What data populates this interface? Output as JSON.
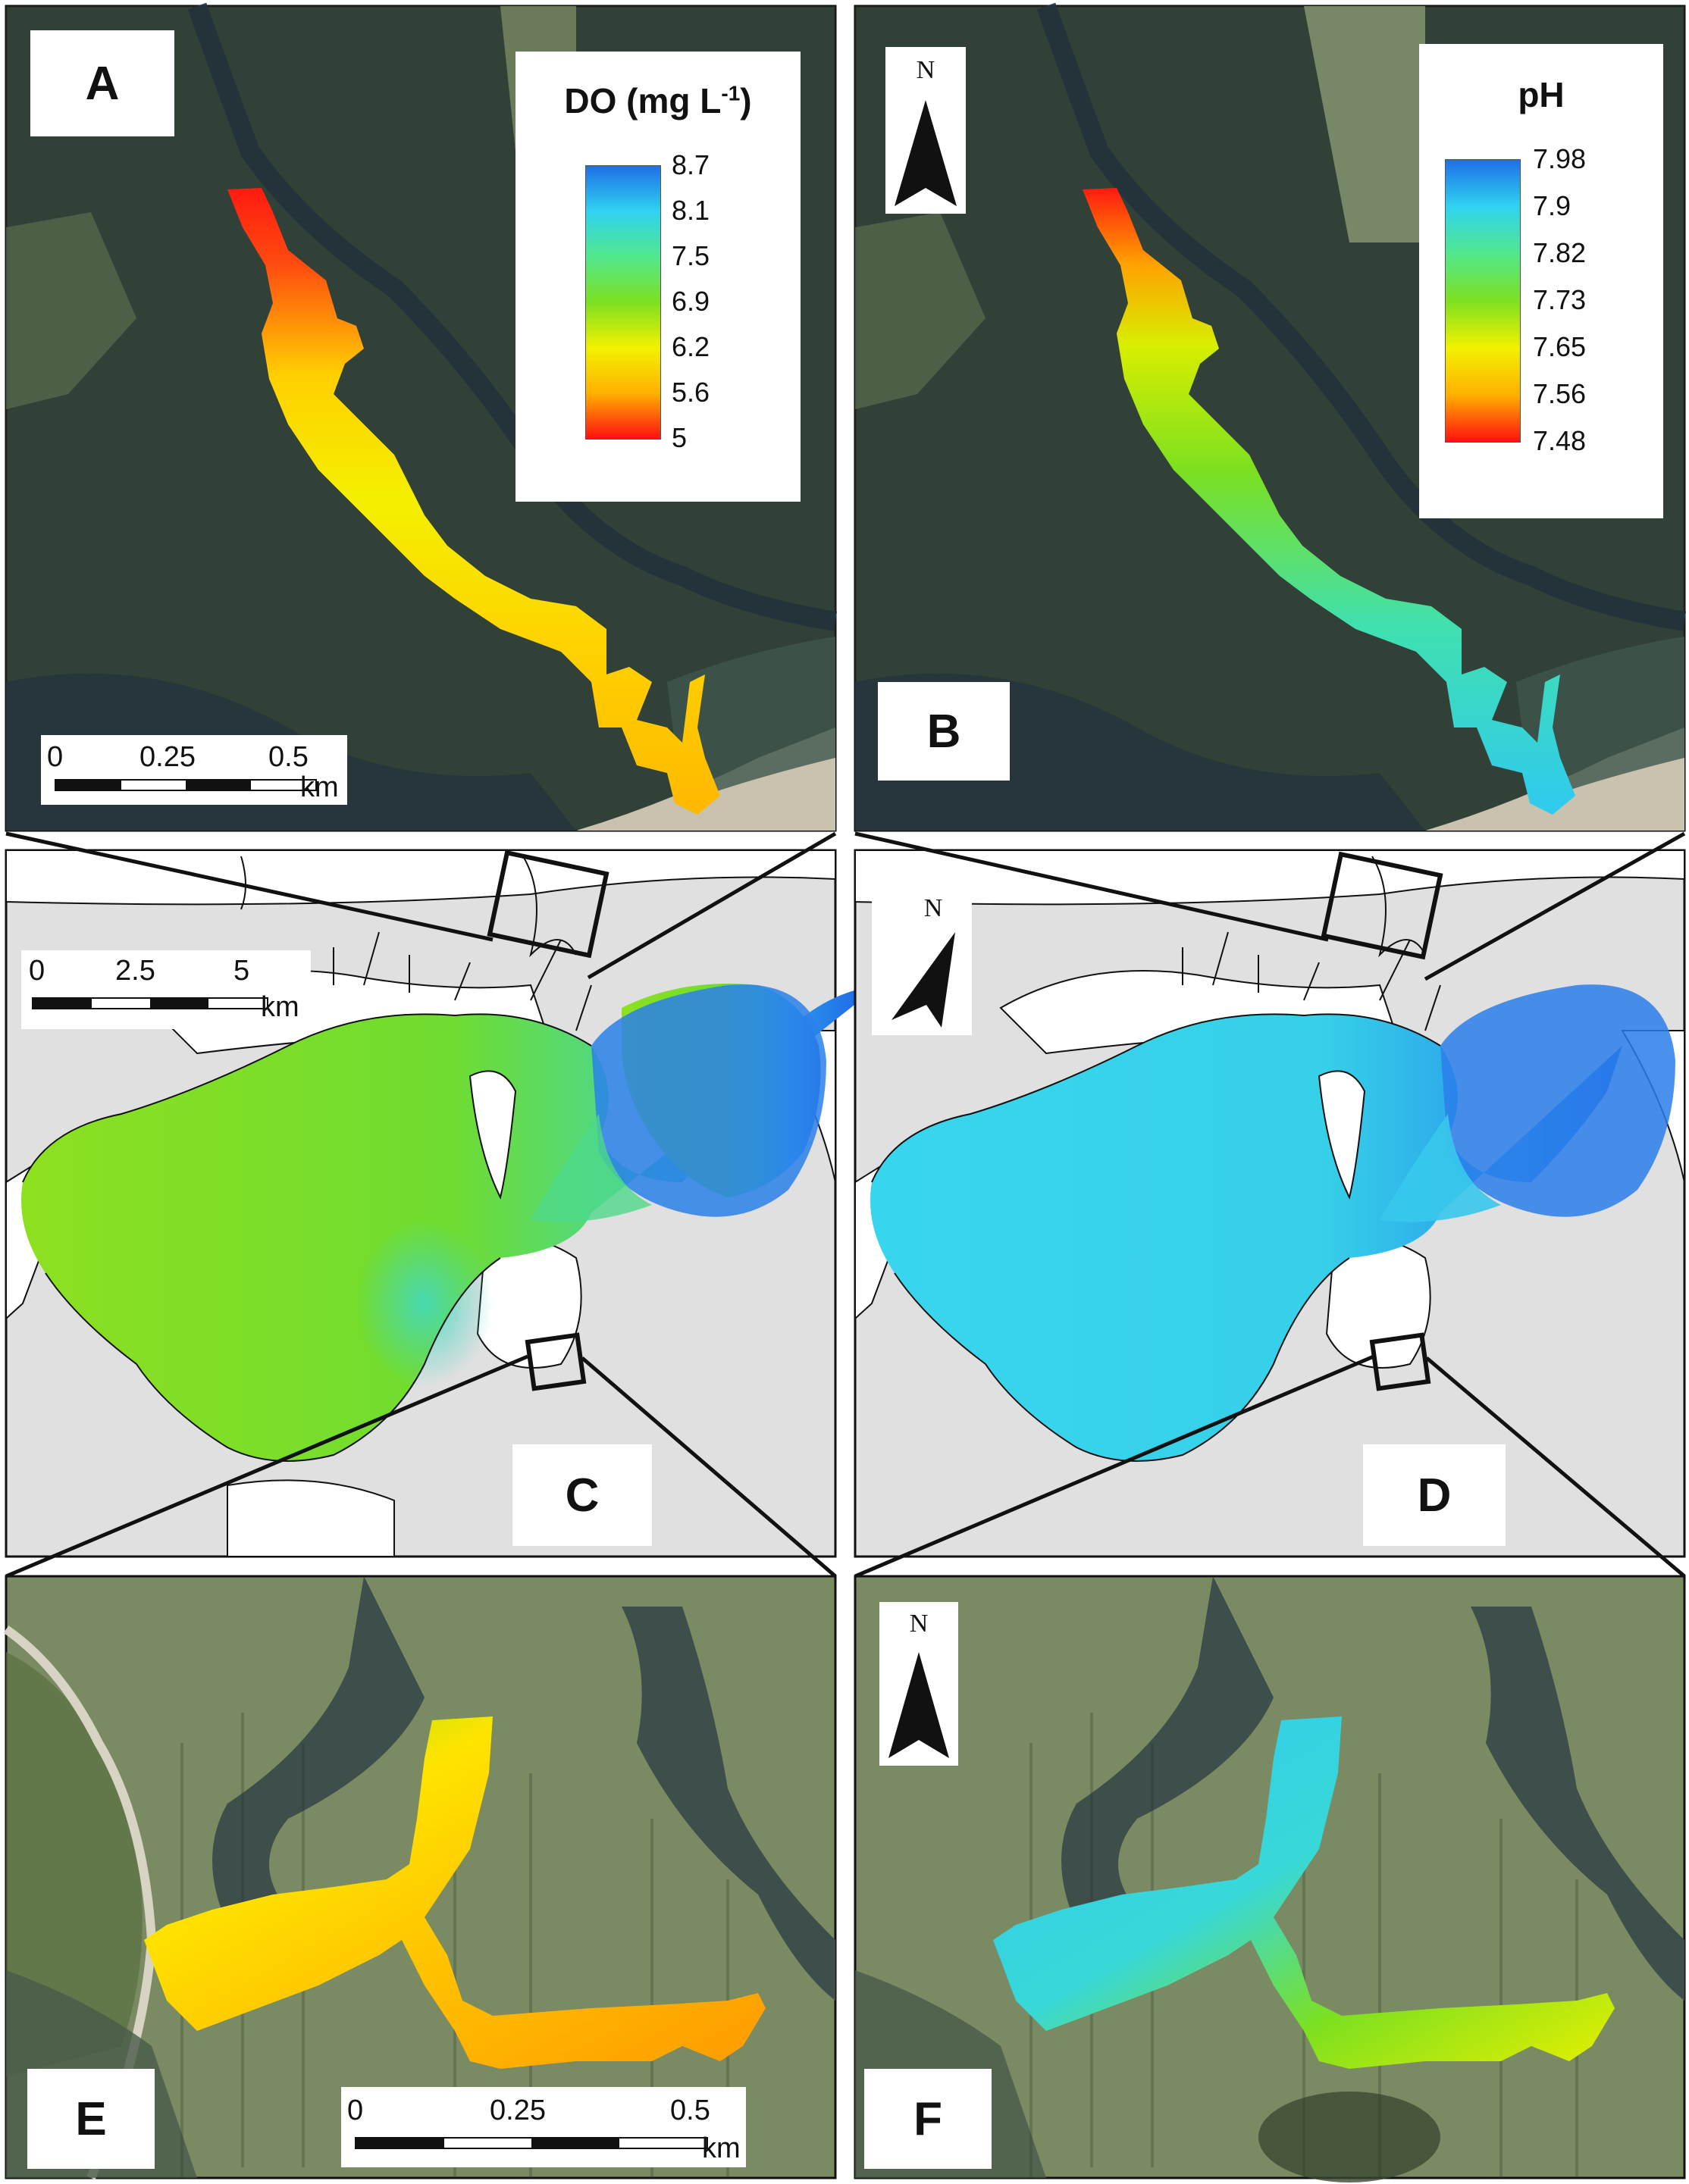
{
  "panels": {
    "a": {
      "letter": "A"
    },
    "b": {
      "letter": "B"
    },
    "c": {
      "letter": "C"
    },
    "d": {
      "letter": "D"
    },
    "e": {
      "letter": "E"
    },
    "f": {
      "letter": "F"
    }
  },
  "legend_do": {
    "title_main": "DO (mg L",
    "title_sup": "-1",
    "title_end": ")",
    "ticks": [
      "8.7",
      "8.1",
      "7.5",
      "6.9",
      "6.2",
      "5.6",
      "5"
    ],
    "ramp_colors": [
      "#1f6fe8",
      "#2fd3f0",
      "#52e88c",
      "#7de020",
      "#f2f200",
      "#ffb000",
      "#ff1010"
    ]
  },
  "legend_ph": {
    "title": "pH",
    "ticks": [
      "7.98",
      "7.9",
      "7.82",
      "7.73",
      "7.65",
      "7.56",
      "7.48"
    ],
    "ramp_colors": [
      "#1f6fe8",
      "#2fd3f0",
      "#52e88c",
      "#7de020",
      "#f2f200",
      "#ffb000",
      "#ff1010"
    ]
  },
  "scalebars": {
    "a": {
      "labels": [
        "0",
        "0.25",
        "0.5"
      ],
      "unit": "km"
    },
    "c": {
      "labels": [
        "0",
        "2.5",
        "5"
      ],
      "unit": "km"
    },
    "e": {
      "labels": [
        "0",
        "0.25",
        "0.5"
      ],
      "unit": "km"
    }
  },
  "north_label": "N",
  "colors": {
    "aerial_dark": "#3a4a3a",
    "aerial_marsh": "#7a8a62",
    "basemap_land": "#e0e0e0",
    "water_white": "#ffffff"
  }
}
